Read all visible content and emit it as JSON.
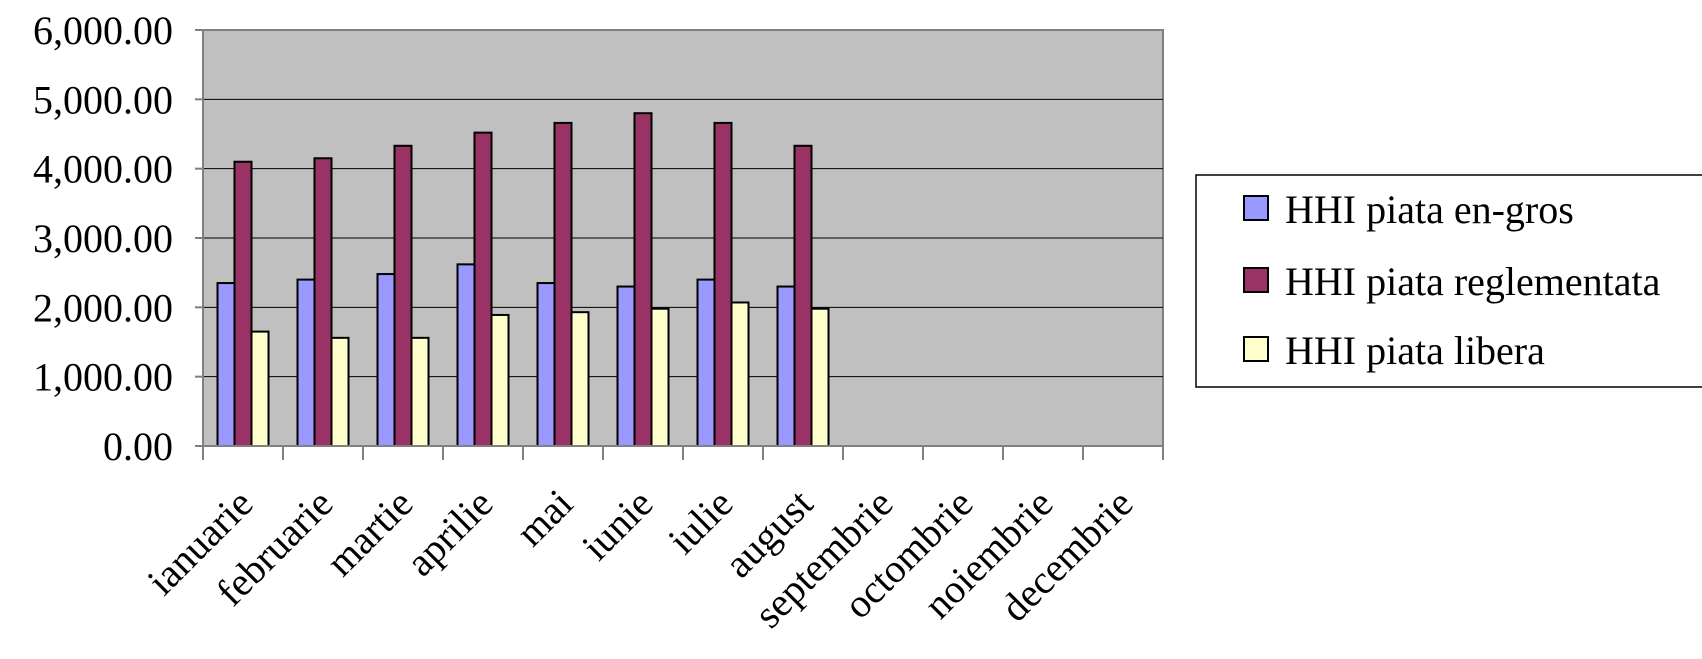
{
  "chart_data": {
    "type": "bar",
    "title": "",
    "xlabel": "",
    "ylabel": "",
    "ylim": [
      0,
      6000
    ],
    "yticks": [
      "0.00",
      "1,000.00",
      "2,000.00",
      "3,000.00",
      "4,000.00",
      "5,000.00",
      "6,000.00"
    ],
    "grid": true,
    "legend_position": "right",
    "categories": [
      "ianuarie",
      "februarie",
      "martie",
      "aprilie",
      "mai",
      "iunie",
      "iulie",
      "august",
      "septembrie",
      "octombrie",
      "noiembrie",
      "decembrie"
    ],
    "series": [
      {
        "name": "HHI piata en-gros",
        "color": "#9999ff",
        "values": [
          2350,
          2400,
          2480,
          2620,
          2350,
          2300,
          2400,
          2300,
          null,
          null,
          null,
          null
        ]
      },
      {
        "name": "HHI piata reglementata",
        "color": "#993366",
        "values": [
          4100,
          4150,
          4330,
          4520,
          4660,
          4800,
          4660,
          4330,
          null,
          null,
          null,
          null
        ]
      },
      {
        "name": "HHI piata libera",
        "color": "#ffffcc",
        "values": [
          1650,
          1560,
          1560,
          1890,
          1930,
          1980,
          2070,
          1980,
          null,
          null,
          null,
          null
        ]
      }
    ],
    "plot_background": "#c0c0c0"
  }
}
